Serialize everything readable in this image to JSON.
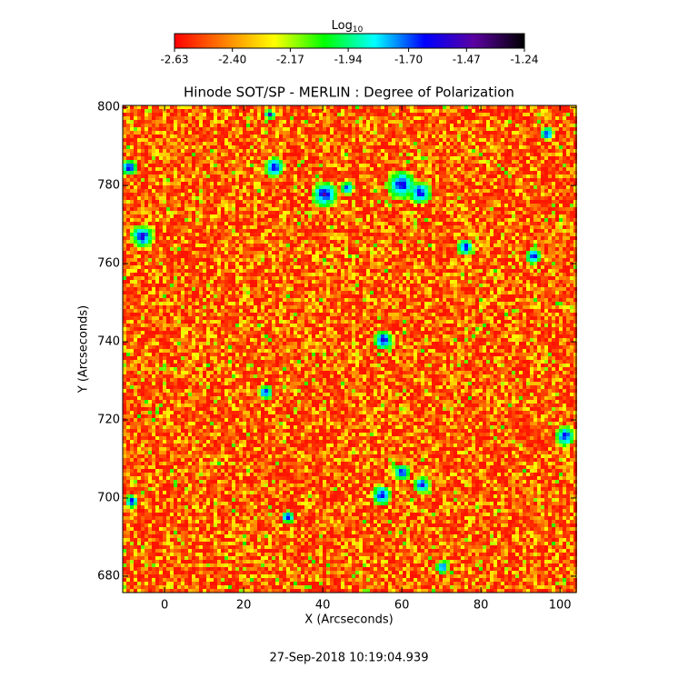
{
  "chart_data": {
    "type": "heatmap",
    "title": "Hinode SOT/SP - MERLIN : Degree of Polarization",
    "xlabel": "X (Arcseconds)",
    "ylabel": "Y (Arcseconds)",
    "xlim": [
      -10.6,
      104.1
    ],
    "ylim": [
      675.8,
      800.5
    ],
    "xticks": [
      0,
      20,
      40,
      60,
      80,
      100
    ],
    "yticks": [
      680,
      700,
      720,
      740,
      760,
      780,
      800
    ],
    "colorbar": {
      "label": "Log",
      "label_subscript": "10",
      "lim": [
        -2.63,
        -1.24
      ],
      "ticks": [
        -2.63,
        {
          "value": -2.4,
          "label": "-2.40"
        },
        -2.17,
        -1.94,
        {
          "value": -1.7,
          "label": "-1.70"
        },
        -1.47,
        -1.24
      ],
      "colormap": [
        "#ff0000",
        "#ff8000",
        "#ffff00",
        "#00ff00",
        "#00ffff",
        "#0000ff",
        "#5a00a0",
        "#000000"
      ]
    },
    "footer": "27-Sep-2018 10:19:04.939"
  }
}
